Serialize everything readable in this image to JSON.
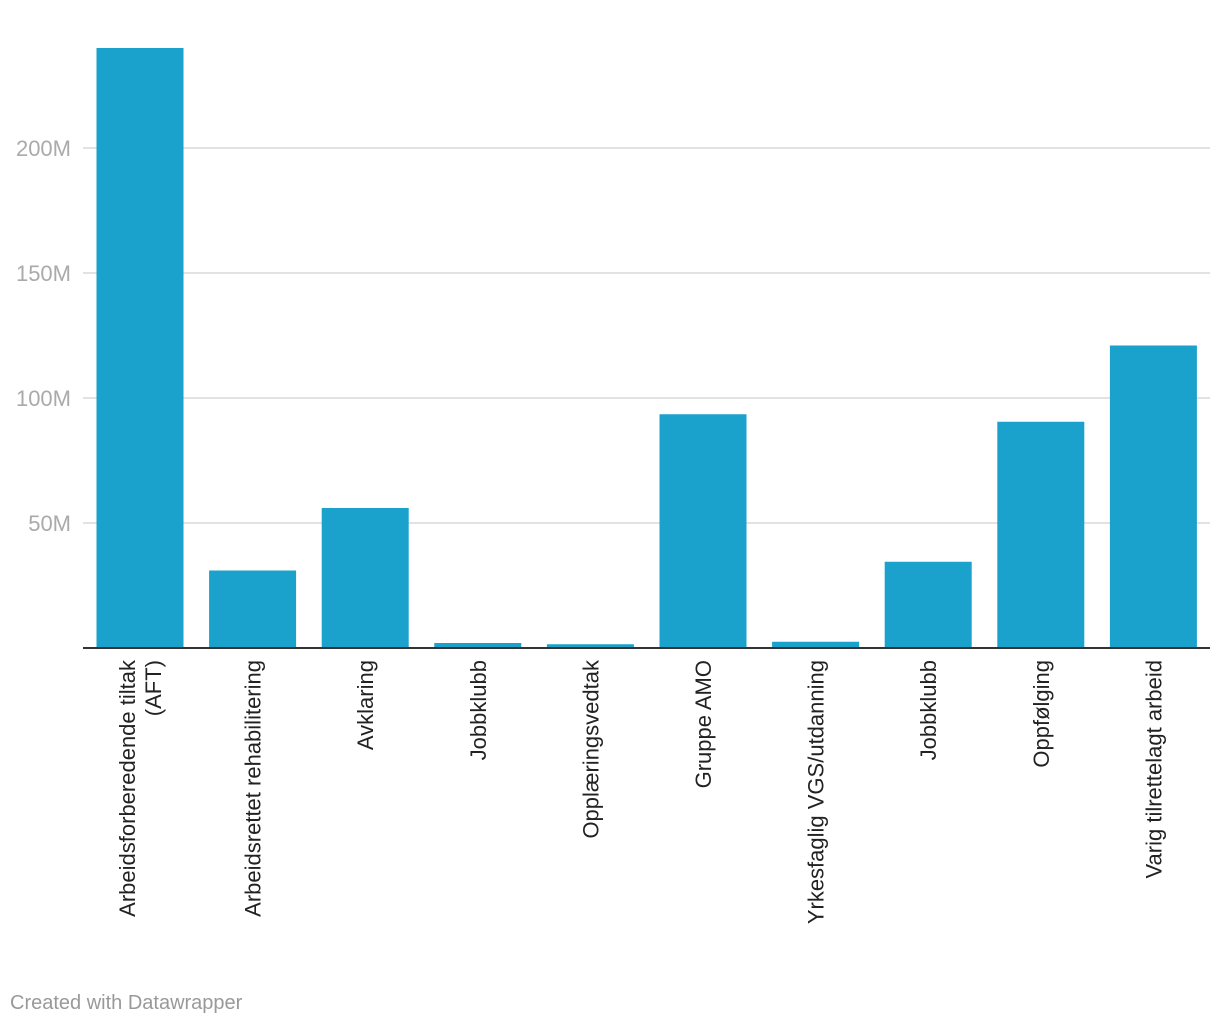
{
  "chart_data": {
    "type": "bar",
    "title": "",
    "xlabel": "",
    "ylabel": "",
    "categories": [
      [
        "Arbeidsforberedende tiltak",
        "(AFT)"
      ],
      [
        "Arbeidsrettet rehabilitering"
      ],
      [
        "Avklaring"
      ],
      [
        "Jobbklubb"
      ],
      [
        "Opplæringsvedtak"
      ],
      [
        "Gruppe AMO"
      ],
      [
        "Yrkesfaglig VGS/utdanning"
      ],
      [
        "Jobbklubb"
      ],
      [
        "Oppfølging"
      ],
      [
        "Varig tilrettelagt arbeid"
      ]
    ],
    "values": [
      240,
      31,
      56,
      2,
      1.5,
      93.5,
      2.5,
      34.5,
      90.5,
      121
    ],
    "unit": "M",
    "ylim": [
      0,
      240
    ],
    "yticks": [
      50,
      100,
      150,
      200
    ],
    "ytick_labels": [
      "50M",
      "100M",
      "150M",
      "200M"
    ],
    "grid": true,
    "bar_color": "#1aa1cc",
    "gridline_color": "#e2e2e2",
    "axis_color": "#333333"
  },
  "footer": {
    "credit": "Created with Datawrapper"
  }
}
